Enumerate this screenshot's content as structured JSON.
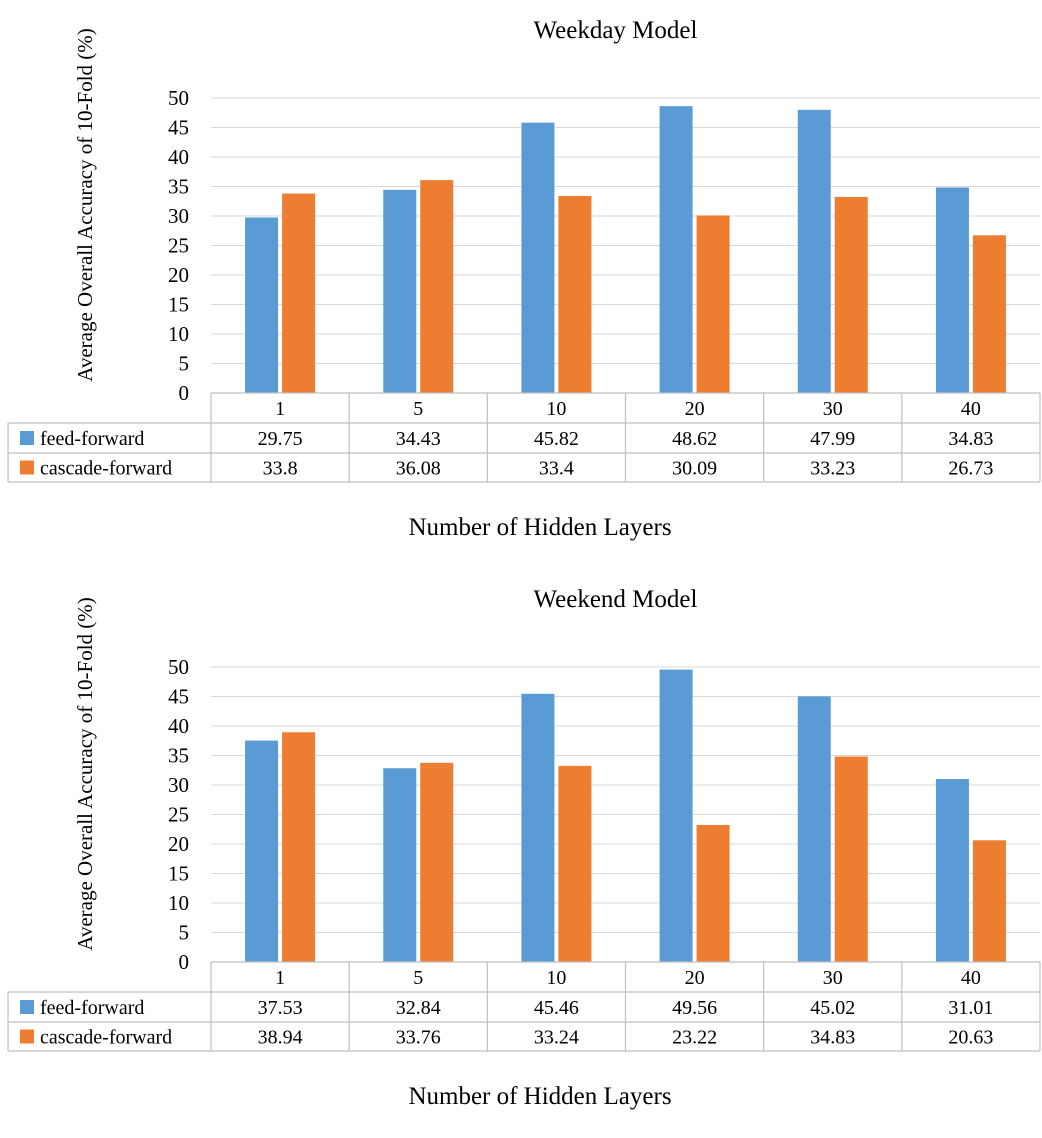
{
  "chart_data": [
    {
      "type": "bar",
      "title": "Weekday Model",
      "xlabel": "Number of Hidden Layers",
      "ylabel": "Average Overall Accuracy of 10-Fold (%)",
      "ylim": [
        0,
        50
      ],
      "yticks": [
        0,
        5,
        10,
        15,
        20,
        25,
        30,
        35,
        40,
        45,
        50
      ],
      "grid": true,
      "legend": "data-table",
      "categories": [
        "1",
        "5",
        "10",
        "20",
        "30",
        "40"
      ],
      "series": [
        {
          "name": "feed-forward",
          "color": "#5B9BD5",
          "values": [
            29.75,
            34.43,
            45.82,
            48.62,
            47.99,
            34.83
          ],
          "labels": [
            "29.75",
            "34.43",
            "45.82",
            "48.62",
            "47.99",
            "34.83"
          ]
        },
        {
          "name": "cascade-forward",
          "color": "#ED7D31",
          "values": [
            33.8,
            36.08,
            33.4,
            30.09,
            33.23,
            26.73
          ],
          "labels": [
            "33.8",
            "36.08",
            "33.4",
            "30.09",
            "33.23",
            "26.73"
          ]
        }
      ]
    },
    {
      "type": "bar",
      "title": "Weekend Model",
      "xlabel": "Number of Hidden Layers",
      "ylabel": "Average Overall Accuracy of 10-Fold (%)",
      "ylim": [
        0,
        50
      ],
      "yticks": [
        0,
        5,
        10,
        15,
        20,
        25,
        30,
        35,
        40,
        45,
        50
      ],
      "grid": true,
      "legend": "data-table",
      "categories": [
        "1",
        "5",
        "10",
        "20",
        "30",
        "40"
      ],
      "series": [
        {
          "name": "feed-forward",
          "color": "#5B9BD5",
          "values": [
            37.53,
            32.84,
            45.46,
            49.56,
            45.02,
            31.01
          ],
          "labels": [
            "37.53",
            "32.84",
            "45.46",
            "49.56",
            "45.02",
            "31.01"
          ]
        },
        {
          "name": "cascade-forward",
          "color": "#ED7D31",
          "values": [
            38.94,
            33.76,
            33.24,
            23.22,
            34.83,
            20.63
          ],
          "labels": [
            "38.94",
            "33.76",
            "33.24",
            "23.22",
            "34.83",
            "20.63"
          ]
        }
      ]
    }
  ]
}
